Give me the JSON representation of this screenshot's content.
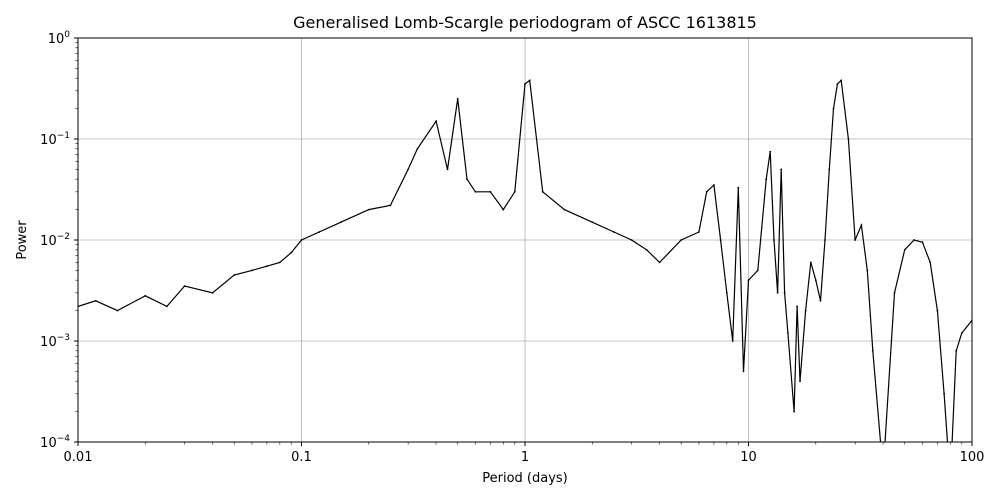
{
  "chart_data": {
    "type": "line",
    "title": "Generalised Lomb-Scargle periodogram of ASCC 1613815",
    "xlabel": "Period (days)",
    "ylabel": "Power",
    "xscale": "log",
    "yscale": "log",
    "xlim": [
      0.01,
      100
    ],
    "ylim": [
      0.0001,
      1
    ],
    "grid": true,
    "line_color": "#000000",
    "x_ticks": [
      {
        "value": 0.01,
        "label": "0.01"
      },
      {
        "value": 0.1,
        "label": "0.1"
      },
      {
        "value": 1,
        "label": "1"
      },
      {
        "value": 10,
        "label": "10"
      },
      {
        "value": 100,
        "label": "100"
      }
    ],
    "y_ticks": [
      {
        "value": 0.0001,
        "base": "10",
        "exp": "−4"
      },
      {
        "value": 0.001,
        "base": "10",
        "exp": "−3"
      },
      {
        "value": 0.01,
        "base": "10",
        "exp": "−2"
      },
      {
        "value": 0.1,
        "base": "10",
        "exp": "−1"
      },
      {
        "value": 1,
        "base": "10",
        "exp": "0"
      }
    ],
    "series": [
      {
        "description_points": "approximate envelope of periodogram peaks",
        "x": [
          0.01,
          0.012,
          0.015,
          0.02,
          0.025,
          0.03,
          0.04,
          0.05,
          0.06,
          0.07,
          0.08,
          0.09,
          0.1,
          0.12,
          0.15,
          0.2,
          0.25,
          0.3,
          0.33,
          0.4,
          0.45,
          0.5,
          0.55,
          0.6,
          0.7,
          0.8,
          0.9,
          1.0,
          1.05,
          1.2,
          1.5,
          2.0,
          2.5,
          3.0,
          3.5,
          4.0,
          5.0,
          6.0,
          6.5,
          7.0,
          7.5,
          8.0,
          8.5,
          9.0,
          9.5,
          10.0,
          11.0,
          12.0,
          12.5,
          13.0,
          13.5,
          14.0,
          14.5,
          15.0,
          16.0,
          16.5,
          17.0,
          18.0,
          19.0,
          20.0,
          21.0,
          22.0,
          23.0,
          24.0,
          25.0,
          26.0,
          28.0,
          30.0,
          32.0,
          34.0,
          36.0,
          40.0,
          45.0,
          50.0,
          55.0,
          60.0,
          65.0,
          70.0,
          75.0,
          80.0,
          85.0,
          90.0,
          100.0
        ],
        "y": [
          0.0022,
          0.0025,
          0.002,
          0.0028,
          0.0022,
          0.0035,
          0.003,
          0.0045,
          0.005,
          0.0055,
          0.006,
          0.0075,
          0.01,
          0.012,
          0.015,
          0.02,
          0.022,
          0.05,
          0.08,
          0.15,
          0.05,
          0.25,
          0.04,
          0.03,
          0.03,
          0.02,
          0.03,
          0.35,
          0.38,
          0.03,
          0.02,
          0.015,
          0.012,
          0.01,
          0.008,
          0.006,
          0.01,
          0.012,
          0.03,
          0.035,
          0.01,
          0.003,
          0.001,
          0.033,
          0.0005,
          0.004,
          0.005,
          0.04,
          0.075,
          0.01,
          0.003,
          0.05,
          0.003,
          0.0012,
          0.0002,
          0.0022,
          0.0004,
          0.002,
          0.006,
          0.004,
          0.0025,
          0.01,
          0.05,
          0.2,
          0.35,
          0.38,
          0.1,
          0.01,
          0.014,
          0.005,
          0.0008,
          5e-05,
          0.003,
          0.008,
          0.01,
          0.0095,
          0.006,
          0.002,
          0.0003,
          4e-05,
          0.0008,
          0.0012,
          0.0016
        ]
      }
    ]
  }
}
